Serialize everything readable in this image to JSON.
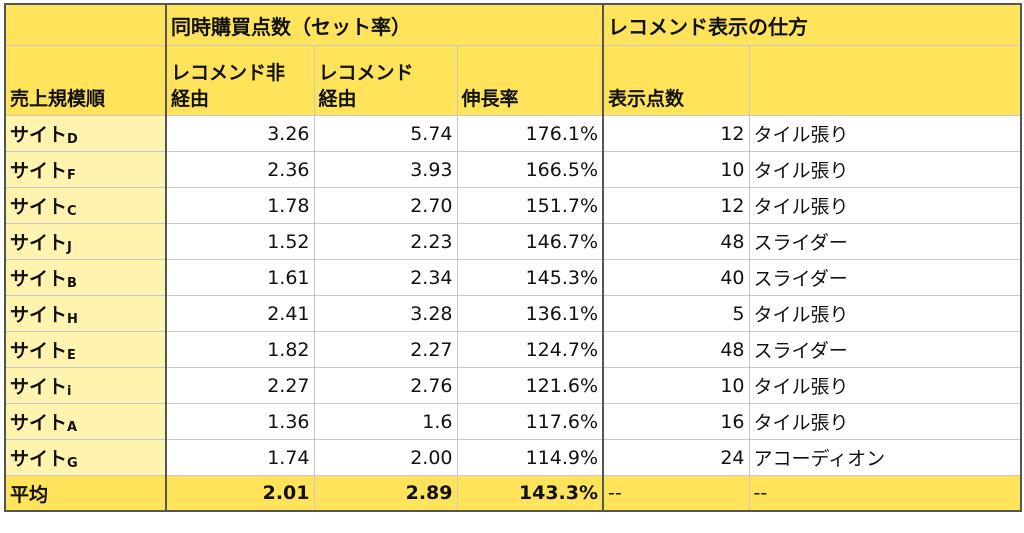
{
  "header": {
    "group_purchase": "同時購買点数（セット率）",
    "group_display": "レコメンド表示の仕方",
    "col_rank": "売上規模順",
    "col_without_line1": "レコメンド非",
    "col_without_line2": "経由",
    "col_with_line1": "レコメンド",
    "col_with_line2": "経由",
    "col_growth": "伸長率",
    "col_count": "表示点数",
    "col_method": ""
  },
  "rows": [
    {
      "name": "サイト",
      "suffix": "D",
      "without": "3.26",
      "with": "5.74",
      "growth": "176.1%",
      "count": "12",
      "method": "タイル張り"
    },
    {
      "name": "サイト",
      "suffix": "F",
      "without": "2.36",
      "with": "3.93",
      "growth": "166.5%",
      "count": "10",
      "method": "タイル張り"
    },
    {
      "name": "サイト",
      "suffix": "C",
      "without": "1.78",
      "with": "2.70",
      "growth": "151.7%",
      "count": "12",
      "method": "タイル張り"
    },
    {
      "name": "サイト",
      "suffix": "J",
      "without": "1.52",
      "with": "2.23",
      "growth": "146.7%",
      "count": "48",
      "method": "スライダー"
    },
    {
      "name": "サイト",
      "suffix": "B",
      "without": "1.61",
      "with": "2.34",
      "growth": "145.3%",
      "count": "40",
      "method": "スライダー"
    },
    {
      "name": "サイト",
      "suffix": "H",
      "without": "2.41",
      "with": "3.28",
      "growth": "136.1%",
      "count": "5",
      "method": "タイル張り"
    },
    {
      "name": "サイト",
      "suffix": "E",
      "without": "1.82",
      "with": "2.27",
      "growth": "124.7%",
      "count": "48",
      "method": "スライダー"
    },
    {
      "name": "サイト",
      "suffix": "i",
      "without": "2.27",
      "with": "2.76",
      "growth": "121.6%",
      "count": "10",
      "method": "タイル張り"
    },
    {
      "name": "サイト",
      "suffix": "A",
      "without": "1.36",
      "with": "1.6",
      "growth": "117.6%",
      "count": "16",
      "method": "タイル張り"
    },
    {
      "name": "サイト",
      "suffix": "G",
      "without": "1.74",
      "with": "2.00",
      "growth": "114.9%",
      "count": "24",
      "method": "アコーディオン"
    }
  ],
  "average": {
    "label": "平均",
    "without": "2.01",
    "with": "2.89",
    "growth": "143.3%",
    "count": "--",
    "method": "--"
  },
  "colors": {
    "header_bg": "#ffe35a",
    "label_bg": "#fff3b0"
  }
}
